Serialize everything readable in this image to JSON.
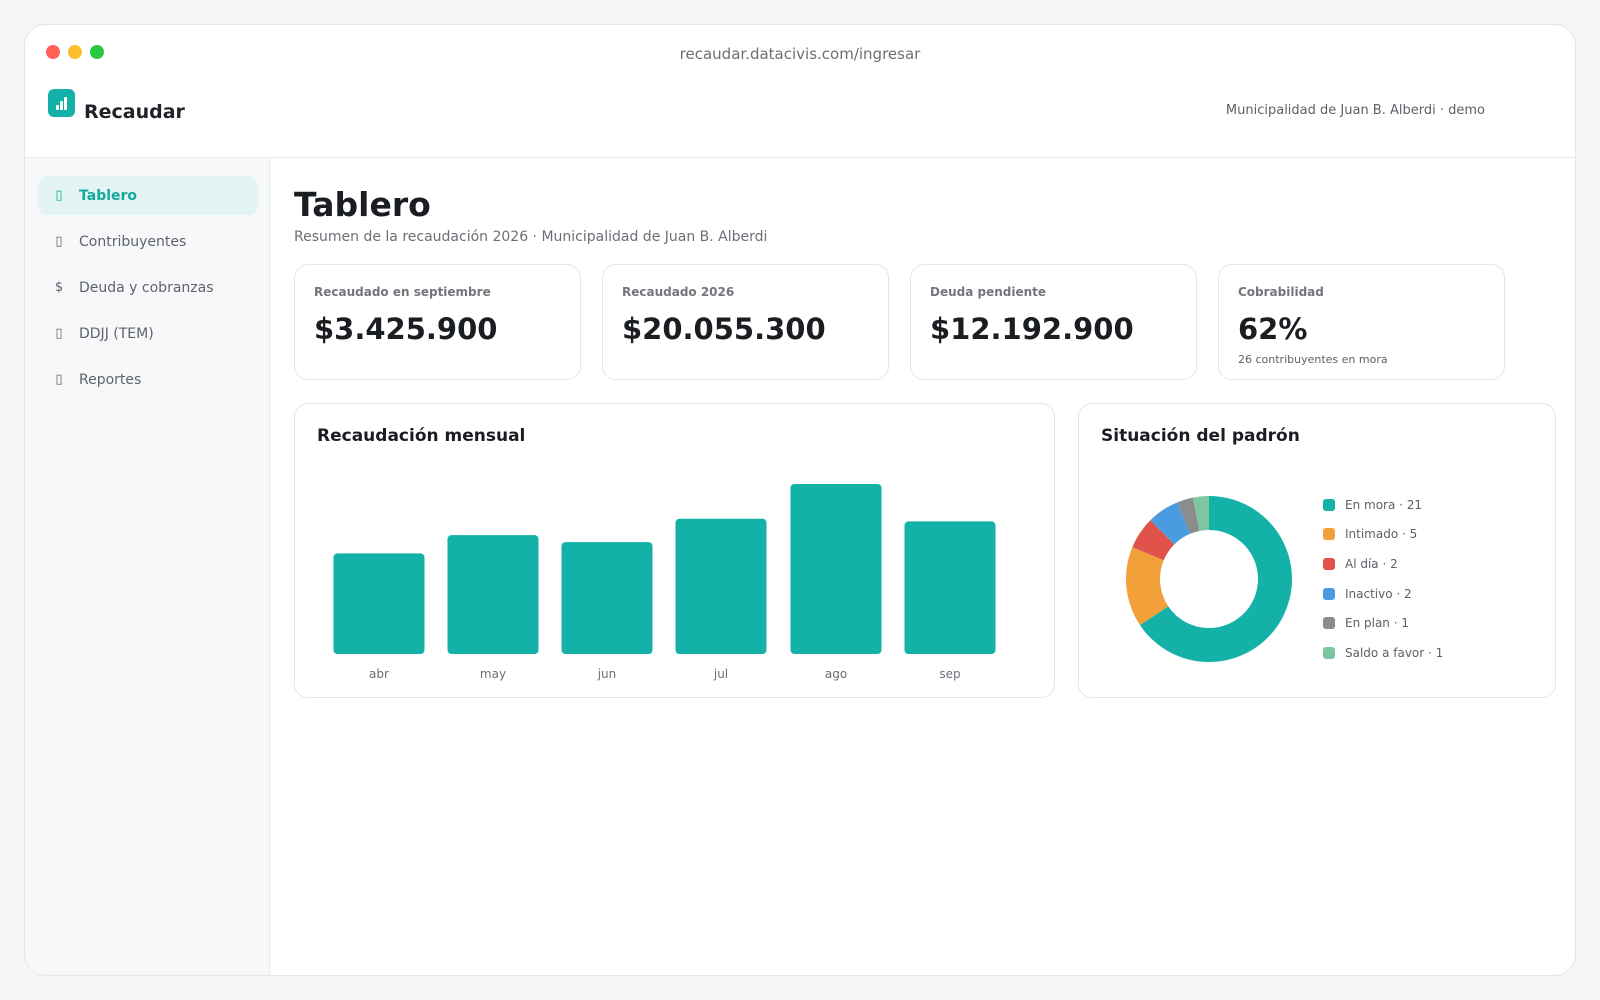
{
  "window": {
    "url": "recaudar.datacivis.com/ingresar"
  },
  "app": {
    "name": "Recaudar",
    "account": "Municipalidad de Juan B. Alberdi · demo"
  },
  "sidebar": {
    "items": [
      {
        "label": "Tablero",
        "icon": "dashboard-icon",
        "glyph": "▯",
        "active": true
      },
      {
        "label": "Contribuyentes",
        "icon": "users-icon",
        "glyph": "▯",
        "active": false
      },
      {
        "label": "Deuda y cobranzas",
        "icon": "dollar-icon",
        "glyph": "$",
        "active": false
      },
      {
        "label": "DDJJ (TEM)",
        "icon": "document-icon",
        "glyph": "▯",
        "active": false
      },
      {
        "label": "Reportes",
        "icon": "report-icon",
        "glyph": "▯",
        "active": false
      }
    ]
  },
  "page": {
    "title": "Tablero",
    "subtitle": "Resumen de la recaudación 2026 · Municipalidad de Juan B. Alberdi"
  },
  "kpis": [
    {
      "label": "Recaudado en septiembre",
      "value": "$3.425.900",
      "note": ""
    },
    {
      "label": "Recaudado 2026",
      "value": "$20.055.300",
      "note": ""
    },
    {
      "label": "Deuda pendiente",
      "value": "$12.192.900",
      "note": ""
    },
    {
      "label": "Cobrabilidad",
      "value": "62%",
      "note": "26 contribuyentes en mora"
    }
  ],
  "colors": {
    "accent": "#13b1a7",
    "en_mora": "#13b1a7",
    "intimado": "#f2a13a",
    "al_dia": "#e0524a",
    "inactivo": "#4a9be0",
    "en_plan": "#8a8c8e",
    "saldo_a_favor": "#7cc6a0"
  },
  "chart_data": [
    {
      "type": "bar",
      "title": "Recaudación mensual",
      "categories": [
        "abr",
        "may",
        "jun",
        "jul",
        "ago",
        "sep"
      ],
      "values": [
        2.58,
        3.05,
        2.87,
        3.47,
        4.36,
        3.4
      ],
      "ylim": [
        0,
        4.36
      ],
      "color": "#13b1a7",
      "grid": false
    },
    {
      "type": "pie",
      "title": "Situación del padrón",
      "labels": [
        "En mora · 21",
        "Intimado · 5",
        "Al día · 2",
        "Inactivo · 2",
        "En plan · 1",
        "Saldo a favor · 1"
      ],
      "values": [
        21,
        5,
        2,
        2,
        1,
        1
      ],
      "colors": [
        "#13b1a7",
        "#f2a13a",
        "#e0524a",
        "#4a9be0",
        "#8a8c8e",
        "#7cc6a0"
      ],
      "legend": "right"
    }
  ]
}
